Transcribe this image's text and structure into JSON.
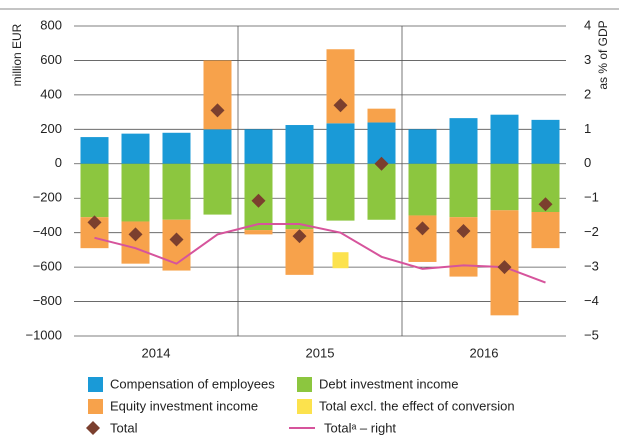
{
  "chart_data": {
    "type": "bar",
    "y_label": "million EUR",
    "y2_label": "as % of GDP",
    "categories": [
      null,
      null,
      null,
      null,
      null,
      null,
      null,
      null,
      null,
      null,
      null,
      null
    ],
    "groups": [
      "2014",
      "2015",
      "2016"
    ],
    "ylim": [
      -1000,
      800
    ],
    "yticks": [
      {
        "value": -1000,
        "label": "−1000"
      },
      {
        "value": -800,
        "label": "−800"
      },
      {
        "value": -600,
        "label": "−600"
      },
      {
        "value": -400,
        "label": "−400"
      },
      {
        "value": -200,
        "label": "−200"
      },
      0,
      200,
      400,
      600,
      800
    ],
    "y2lim": [
      -5,
      4
    ],
    "y2ticks": [
      {
        "value": -5,
        "label": "−5"
      },
      {
        "value": -4,
        "label": "−4"
      },
      {
        "value": -3,
        "label": "−3"
      },
      {
        "value": -2,
        "label": "−2"
      },
      {
        "value": -1,
        "label": "−1"
      },
      0,
      1,
      2,
      3,
      4
    ],
    "grid": true,
    "series": [
      {
        "name": "Compensation of employees",
        "type": "bar",
        "color": "#1a9ad7",
        "values": [
          155,
          175,
          180,
          200,
          200,
          225,
          235,
          240,
          200,
          265,
          285,
          255
        ]
      },
      {
        "name": "Debt investment income",
        "type": "bar",
        "color": "#8cc63f",
        "values": [
          -310,
          -335,
          -325,
          -295,
          -385,
          -380,
          -330,
          -325,
          -300,
          -310,
          -270,
          -280
        ]
      },
      {
        "name": "Equity investment income",
        "type": "bar",
        "color": "#f7a24b",
        "values": [
          -180,
          -245,
          -295,
          400,
          -25,
          -265,
          430,
          80,
          -270,
          -345,
          -610,
          -210
        ]
      },
      {
        "name": "Total excl. the effect of conversion",
        "type": "square",
        "color": "#fce24d",
        "values": [
          null,
          null,
          null,
          null,
          null,
          null,
          -560,
          null,
          null,
          null,
          null,
          null
        ]
      },
      {
        "name": "Total",
        "type": "diamond",
        "color": "#7b3f2e",
        "values": [
          -340,
          -410,
          -440,
          310,
          -215,
          -420,
          340,
          0,
          -375,
          -390,
          -600,
          -235
        ]
      },
      {
        "name": "Totalᵃ – right",
        "type": "line",
        "axis": "y2",
        "color": "#d6549c",
        "values": [
          -2.15,
          -2.45,
          -2.9,
          -2.05,
          -1.75,
          -1.75,
          -2.0,
          -2.7,
          -3.05,
          -2.95,
          -3.0,
          -3.45
        ]
      }
    ]
  }
}
